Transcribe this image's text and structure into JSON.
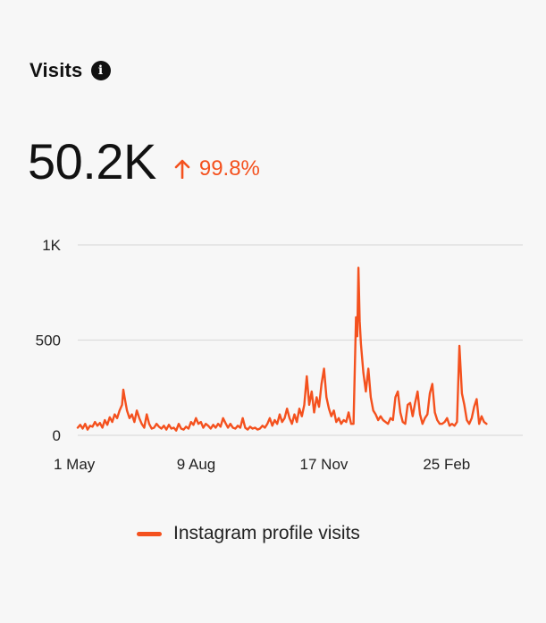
{
  "card": {
    "title": "Visits",
    "info_icon": "info-icon",
    "metric_value": "50.2K",
    "change": {
      "icon": "arrow-up-icon",
      "value": "99.8%",
      "color": "#f4511e"
    }
  },
  "chart_data": {
    "type": "line",
    "title": "",
    "xlabel": "",
    "ylabel": "",
    "ylim": [
      0,
      1000
    ],
    "y_ticks": [
      "0",
      "500",
      "1K"
    ],
    "y_tick_values": [
      0,
      500,
      1000
    ],
    "x_ticks": [
      "1 May",
      "9 Aug",
      "17 Nov",
      "25 Feb"
    ],
    "x_tick_days": [
      0,
      100,
      200,
      300
    ],
    "x_range_days": [
      0,
      360
    ],
    "grid": true,
    "legend_position": "bottom",
    "series": [
      {
        "name": "Instagram profile visits",
        "color": "#f4511e",
        "points": [
          [
            0,
            40
          ],
          [
            2,
            55
          ],
          [
            4,
            35
          ],
          [
            6,
            60
          ],
          [
            8,
            30
          ],
          [
            10,
            50
          ],
          [
            12,
            45
          ],
          [
            14,
            70
          ],
          [
            16,
            50
          ],
          [
            18,
            65
          ],
          [
            20,
            40
          ],
          [
            22,
            80
          ],
          [
            24,
            55
          ],
          [
            26,
            95
          ],
          [
            28,
            70
          ],
          [
            30,
            110
          ],
          [
            32,
            90
          ],
          [
            34,
            130
          ],
          [
            36,
            160
          ],
          [
            37,
            240
          ],
          [
            38,
            200
          ],
          [
            40,
            130
          ],
          [
            42,
            90
          ],
          [
            44,
            110
          ],
          [
            46,
            70
          ],
          [
            48,
            130
          ],
          [
            50,
            90
          ],
          [
            52,
            60
          ],
          [
            54,
            40
          ],
          [
            56,
            110
          ],
          [
            58,
            60
          ],
          [
            60,
            35
          ],
          [
            62,
            40
          ],
          [
            64,
            60
          ],
          [
            66,
            45
          ],
          [
            68,
            35
          ],
          [
            70,
            50
          ],
          [
            72,
            30
          ],
          [
            74,
            55
          ],
          [
            76,
            35
          ],
          [
            78,
            40
          ],
          [
            80,
            25
          ],
          [
            82,
            60
          ],
          [
            84,
            35
          ],
          [
            86,
            30
          ],
          [
            88,
            45
          ],
          [
            90,
            35
          ],
          [
            92,
            70
          ],
          [
            94,
            55
          ],
          [
            96,
            90
          ],
          [
            98,
            60
          ],
          [
            100,
            70
          ],
          [
            102,
            40
          ],
          [
            104,
            60
          ],
          [
            106,
            50
          ],
          [
            108,
            35
          ],
          [
            110,
            55
          ],
          [
            112,
            40
          ],
          [
            114,
            60
          ],
          [
            116,
            45
          ],
          [
            118,
            90
          ],
          [
            120,
            65
          ],
          [
            122,
            40
          ],
          [
            124,
            60
          ],
          [
            126,
            40
          ],
          [
            128,
            35
          ],
          [
            130,
            50
          ],
          [
            132,
            40
          ],
          [
            134,
            90
          ],
          [
            136,
            40
          ],
          [
            138,
            30
          ],
          [
            140,
            45
          ],
          [
            142,
            35
          ],
          [
            144,
            40
          ],
          [
            146,
            30
          ],
          [
            148,
            35
          ],
          [
            150,
            50
          ],
          [
            152,
            40
          ],
          [
            154,
            60
          ],
          [
            156,
            90
          ],
          [
            158,
            50
          ],
          [
            160,
            80
          ],
          [
            162,
            60
          ],
          [
            164,
            110
          ],
          [
            166,
            70
          ],
          [
            168,
            90
          ],
          [
            170,
            140
          ],
          [
            172,
            90
          ],
          [
            174,
            60
          ],
          [
            176,
            110
          ],
          [
            178,
            70
          ],
          [
            180,
            140
          ],
          [
            182,
            100
          ],
          [
            184,
            160
          ],
          [
            186,
            310
          ],
          [
            188,
            160
          ],
          [
            190,
            230
          ],
          [
            192,
            120
          ],
          [
            194,
            200
          ],
          [
            196,
            150
          ],
          [
            198,
            270
          ],
          [
            200,
            350
          ],
          [
            202,
            200
          ],
          [
            204,
            140
          ],
          [
            206,
            100
          ],
          [
            208,
            130
          ],
          [
            210,
            70
          ],
          [
            212,
            90
          ],
          [
            214,
            60
          ],
          [
            216,
            80
          ],
          [
            218,
            70
          ],
          [
            220,
            120
          ],
          [
            222,
            60
          ],
          [
            224,
            60
          ],
          [
            226,
            620
          ],
          [
            227,
            520
          ],
          [
            228,
            880
          ],
          [
            229,
            600
          ],
          [
            230,
            480
          ],
          [
            232,
            330
          ],
          [
            234,
            230
          ],
          [
            236,
            350
          ],
          [
            238,
            200
          ],
          [
            240,
            130
          ],
          [
            242,
            110
          ],
          [
            244,
            80
          ],
          [
            246,
            100
          ],
          [
            248,
            80
          ],
          [
            250,
            70
          ],
          [
            252,
            60
          ],
          [
            254,
            90
          ],
          [
            256,
            80
          ],
          [
            258,
            200
          ],
          [
            260,
            230
          ],
          [
            262,
            120
          ],
          [
            264,
            70
          ],
          [
            266,
            60
          ],
          [
            268,
            160
          ],
          [
            270,
            170
          ],
          [
            272,
            100
          ],
          [
            274,
            170
          ],
          [
            276,
            230
          ],
          [
            278,
            110
          ],
          [
            280,
            60
          ],
          [
            282,
            90
          ],
          [
            284,
            110
          ],
          [
            286,
            220
          ],
          [
            288,
            270
          ],
          [
            290,
            120
          ],
          [
            292,
            80
          ],
          [
            294,
            60
          ],
          [
            296,
            60
          ],
          [
            298,
            70
          ],
          [
            300,
            90
          ],
          [
            302,
            50
          ],
          [
            304,
            60
          ],
          [
            306,
            50
          ],
          [
            308,
            70
          ],
          [
            310,
            470
          ],
          [
            312,
            220
          ],
          [
            314,
            160
          ],
          [
            316,
            80
          ],
          [
            318,
            60
          ],
          [
            320,
            90
          ],
          [
            322,
            150
          ],
          [
            324,
            190
          ],
          [
            326,
            60
          ],
          [
            328,
            100
          ],
          [
            330,
            70
          ],
          [
            332,
            60
          ]
        ]
      }
    ]
  }
}
